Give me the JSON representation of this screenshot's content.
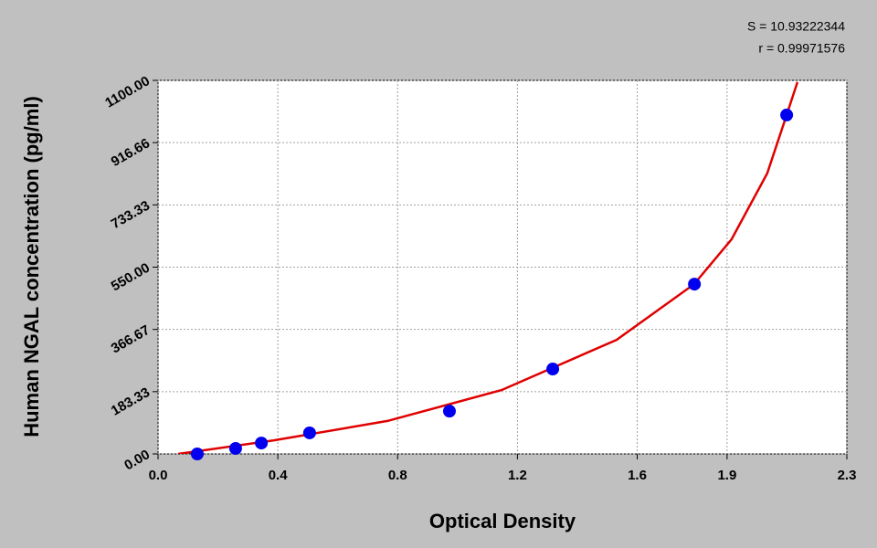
{
  "chart_data": {
    "type": "scatter",
    "annotations": [
      "S = 10.93222344",
      "r = 0.99971576"
    ],
    "x_label": "Optical Density",
    "y_label": "Human NGAL concentration (pg/ml)",
    "xlim": [
      0,
      2.3
    ],
    "xticks": [
      {
        "value": 0,
        "label": "0.0"
      },
      0.4,
      0.8,
      1.2,
      1.6,
      1.9,
      2.3
    ],
    "ylim": [
      0,
      1100
    ],
    "yticks": [
      {
        "value": 0,
        "label": "0.00"
      },
      {
        "value": 183.33,
        "label": "183.33"
      },
      {
        "value": 366.67,
        "label": "366.67"
      },
      {
        "value": 550,
        "label": "550.00"
      },
      {
        "value": 733.33,
        "label": "733.33"
      },
      {
        "value": 916.66,
        "label": "916.66"
      },
      {
        "value": 1100,
        "label": "1100.00"
      }
    ],
    "grid": true,
    "series": [
      {
        "color": "#0000ee",
        "x": [
          0.131,
          0.259,
          0.345,
          0.506,
          0.973,
          1.318,
          1.791,
          2.099
        ],
        "values": [
          0,
          16,
          32,
          62,
          126,
          250,
          500,
          998
        ]
      }
    ],
    "curve": {
      "color": "#e00000",
      "x": [
        0.067,
        0.387,
        0.766,
        1.147,
        1.531,
        1.79,
        1.915,
        2.034,
        2.099,
        2.135
      ],
      "values": [
        0,
        40,
        97,
        188,
        336,
        500,
        632,
        826,
        998,
        1095
      ]
    }
  }
}
